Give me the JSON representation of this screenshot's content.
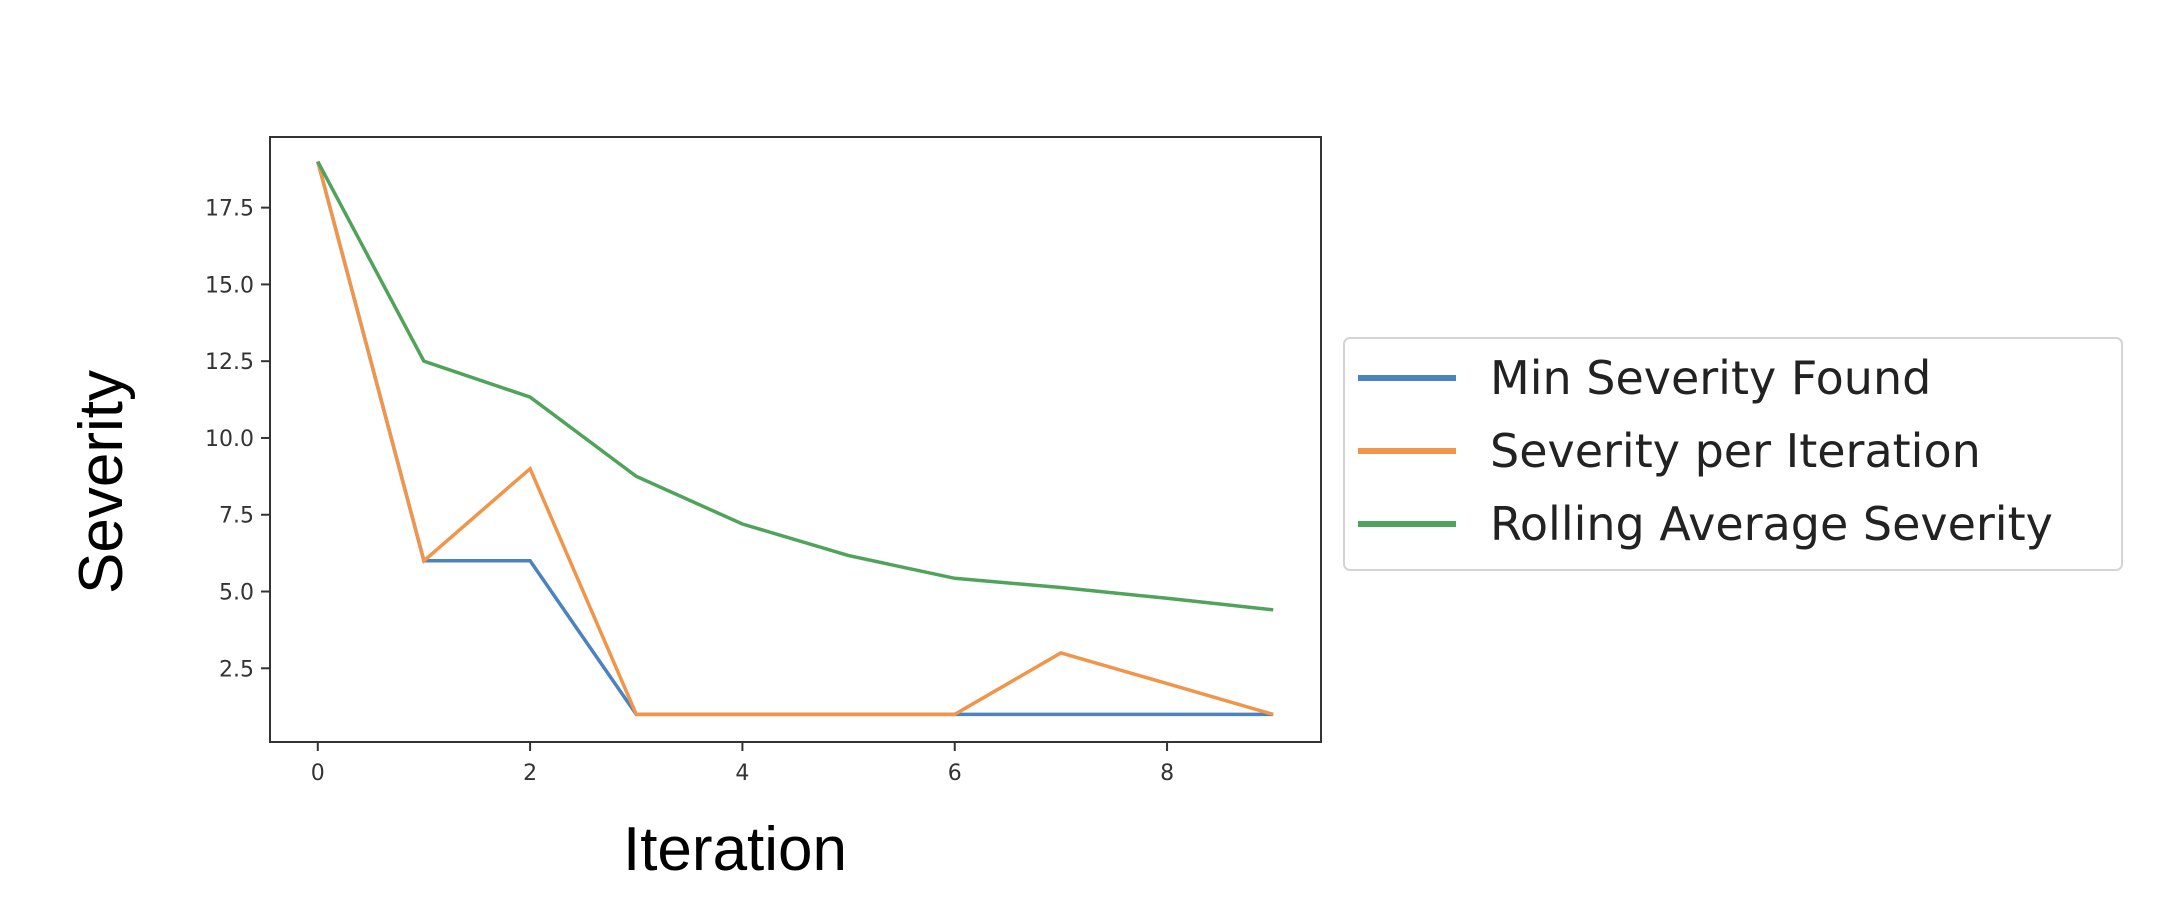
{
  "chart_data": {
    "type": "line",
    "xlabel": "Iteration",
    "ylabel": "Severity",
    "xlim": [
      -0.45,
      9.45
    ],
    "ylim": [
      0.1,
      19.8
    ],
    "xticks": [
      0,
      2,
      4,
      6,
      8
    ],
    "yticks": [
      2.5,
      5.0,
      7.5,
      10.0,
      12.5,
      15.0,
      17.5
    ],
    "xtick_labels": [
      "0",
      "2",
      "4",
      "6",
      "8"
    ],
    "ytick_labels": [
      "2.5",
      "5.0",
      "7.5",
      "10.0",
      "12.5",
      "15.0",
      "17.5"
    ],
    "grid": false,
    "legend_position": "right, outside plot",
    "x": [
      0,
      1,
      2,
      3,
      4,
      5,
      6,
      7,
      8,
      9
    ],
    "series": [
      {
        "name": "Min Severity Found",
        "color": "#4a83c0",
        "values": [
          19,
          6,
          6,
          1,
          1,
          1,
          1,
          1,
          1,
          1
        ]
      },
      {
        "name": "Severity per Iteration",
        "color": "#f0954a",
        "values": [
          19,
          6,
          9,
          1,
          1,
          1,
          1,
          3,
          2,
          1
        ]
      },
      {
        "name": "Rolling Average Severity",
        "color": "#4fa35a",
        "values": [
          19,
          12.5,
          11.33,
          8.75,
          7.2,
          6.17,
          5.43,
          5.13,
          4.78,
          4.4
        ]
      }
    ]
  }
}
